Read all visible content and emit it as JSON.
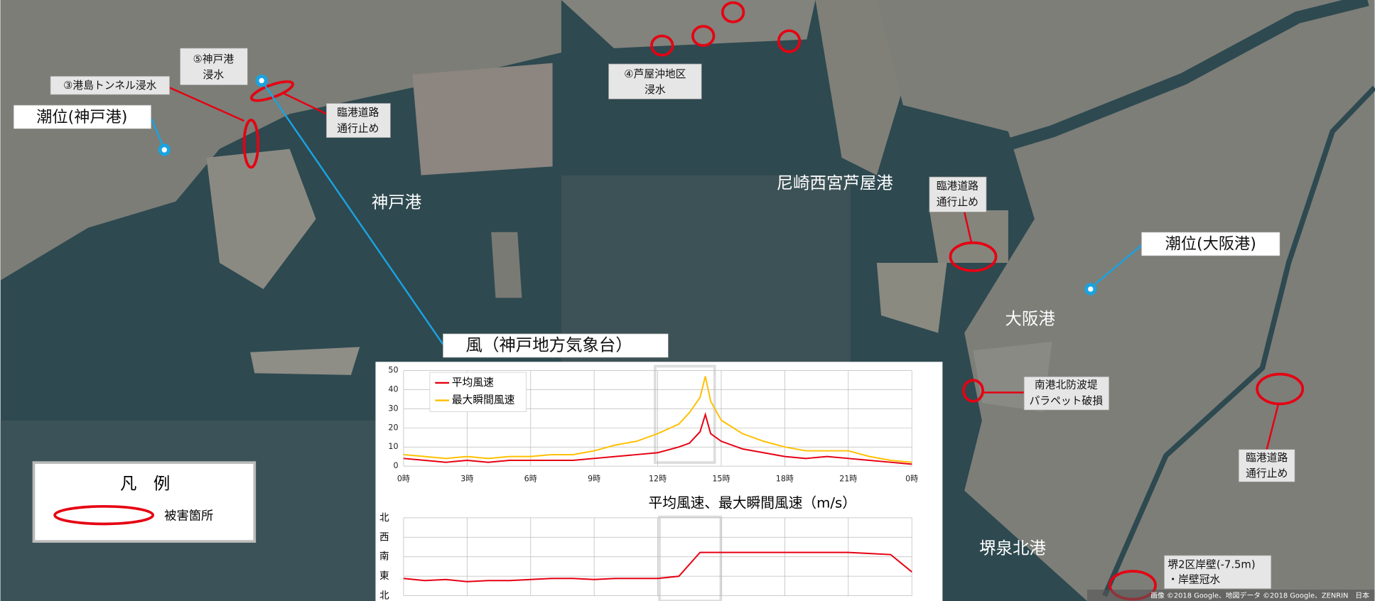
{
  "map": {
    "labels": [
      [
        "⑤神戸港",
        "浸水"
      ],
      [
        "③港島トンネル浸水"
      ],
      [
        "潮位(神戸港)"
      ],
      [
        "臨港道路",
        "通行止め"
      ],
      [
        "④芦屋沖地区",
        "浸水"
      ],
      [
        "神戸港"
      ],
      [
        "尼崎西宮芦屋港"
      ],
      [
        "臨港道路",
        "通行止め"
      ],
      [
        "潮位(大阪港)"
      ],
      [
        "大阪港"
      ],
      [
        "南港北防波堤",
        "パラペット破損"
      ],
      [
        "臨港道路",
        "通行止め"
      ],
      [
        "堺泉北港"
      ],
      [
        "堺2区岸壁(-7.5m)",
        "・岸壁冠水"
      ],
      [
        "風（神戸地方気象台）"
      ]
    ],
    "legend": {
      "title": "凡　例",
      "item": "被害箇所"
    },
    "copyright": "画像 ©2018 Google、地図データ ©2018 Google、ZENRIN　日本"
  },
  "chart_data": [
    {
      "type": "line",
      "title": "平均風速、最大瞬間風速（m/s）",
      "x": [
        0,
        1,
        2,
        3,
        4,
        5,
        6,
        7,
        8,
        9,
        10,
        11,
        12,
        13,
        13.5,
        14,
        14.25,
        14.5,
        15,
        16,
        17,
        18,
        19,
        20,
        21,
        22,
        23,
        24
      ],
      "series": [
        {
          "name": "平均風速",
          "color": "#e60012",
          "values": [
            4,
            3,
            2,
            3,
            2,
            3,
            3,
            3,
            3,
            4,
            5,
            6,
            7,
            10,
            12,
            18,
            27,
            17,
            13,
            9,
            7,
            5,
            4,
            5,
            4,
            3,
            2,
            1
          ]
        },
        {
          "name": "最大瞬間風速",
          "color": "#ffc000",
          "values": [
            6,
            5,
            4,
            5,
            4,
            5,
            5,
            6,
            6,
            8,
            11,
            13,
            17,
            22,
            28,
            36,
            47,
            34,
            24,
            17,
            13,
            10,
            8,
            8,
            8,
            5,
            3,
            2
          ]
        }
      ],
      "xlim": [
        0,
        24
      ],
      "xticks": [
        {
          "value": 0,
          "label": "0時"
        },
        {
          "value": 3,
          "label": "3時"
        },
        {
          "value": 6,
          "label": "6時"
        },
        {
          "value": 9,
          "label": "9時"
        },
        {
          "value": 12,
          "label": "12時"
        },
        {
          "value": 15,
          "label": "15時"
        },
        {
          "value": 18,
          "label": "18時"
        },
        {
          "value": 21,
          "label": "21時"
        },
        {
          "value": 24,
          "label": "0時"
        }
      ],
      "ylim": [
        0,
        50
      ],
      "yticks": [
        0,
        10,
        20,
        30,
        40,
        50
      ],
      "grid": true,
      "legend": "top-left"
    },
    {
      "type": "line",
      "x": [
        0,
        1,
        2,
        3,
        4,
        5,
        6,
        7,
        8,
        9,
        10,
        11,
        12,
        13,
        14,
        15,
        16,
        17,
        18,
        19,
        20,
        21,
        22,
        23,
        24
      ],
      "values": [
        80,
        70,
        75,
        65,
        70,
        70,
        75,
        80,
        80,
        75,
        80,
        80,
        80,
        90,
        200,
        200,
        200,
        200,
        200,
        200,
        200,
        200,
        195,
        190,
        110
      ],
      "color": "#e60012",
      "xlim": [
        0,
        24
      ],
      "ylim": [
        0,
        360
      ],
      "yticks": [
        {
          "value": 360,
          "label": "北"
        },
        {
          "value": 270,
          "label": "西"
        },
        {
          "value": 180,
          "label": "南"
        },
        {
          "value": 90,
          "label": "東"
        },
        {
          "value": 0,
          "label": "北"
        }
      ],
      "grid": true
    }
  ]
}
